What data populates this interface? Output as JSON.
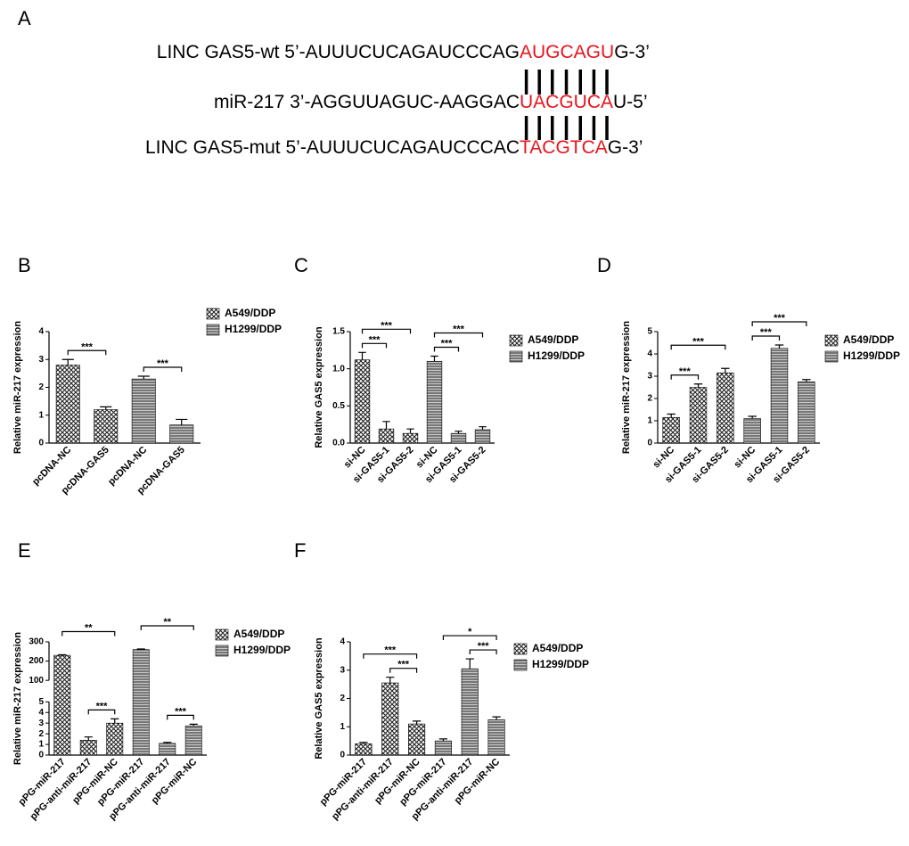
{
  "sequence_panel": {
    "panel": "A",
    "rows": [
      {
        "prefix": "LINC GAS5-wt 5’-AUUUCUCAGAUCCCAG",
        "match": "AUGCAGU",
        "suffix": "G-3’"
      },
      {
        "prefix": "miR-217 3’-AGGUUAGUC-AAGGAC",
        "match": "UACGUCA",
        "suffix": "U-5’"
      },
      {
        "prefix": "LINC GAS5-mut 5’-AUUUCUCAGAUCCCAC",
        "match": "TACGTCA",
        "suffix": "G-3’"
      }
    ]
  },
  "chart_data": [
    {
      "type": "bar",
      "panel": "B",
      "ylabel": "Relative miR-217 expression",
      "categories": [
        "pcDNA-NC",
        "pcDNA-GAS5"
      ],
      "series": [
        {
          "name": "A549/DDP",
          "pattern": "crosshatch",
          "values": [
            2.8,
            1.2
          ],
          "errors": [
            0.2,
            0.1
          ]
        },
        {
          "name": "H1299/DDP",
          "pattern": "hatch",
          "values": [
            2.3,
            0.65
          ],
          "errors": [
            0.1,
            0.2
          ]
        }
      ],
      "ylim": [
        0,
        4
      ],
      "yticks": [
        0,
        1,
        2,
        3,
        4
      ],
      "significance": [
        {
          "series": 0,
          "from": 0,
          "to": 1,
          "label": "***"
        },
        {
          "series": 1,
          "from": 0,
          "to": 1,
          "label": "***"
        }
      ]
    },
    {
      "type": "bar",
      "panel": "C",
      "ylabel": "Relative GAS5 expression",
      "categories": [
        "si-NC",
        "si-GAS5-1",
        "si-GAS5-2"
      ],
      "series": [
        {
          "name": "A549/DDP",
          "pattern": "crosshatch",
          "values": [
            1.12,
            0.19,
            0.13
          ],
          "errors": [
            0.1,
            0.1,
            0.06
          ]
        },
        {
          "name": "H1299/DDP",
          "pattern": "hatch",
          "values": [
            1.1,
            0.13,
            0.18
          ],
          "errors": [
            0.07,
            0.03,
            0.04
          ]
        }
      ],
      "ylim": [
        0,
        1.5
      ],
      "yticks": [
        {
          "value": 0,
          "label": "0.0"
        },
        0.5,
        {
          "value": 1,
          "label": "1.0"
        },
        1.5
      ],
      "significance": [
        {
          "series": 0,
          "from": 0,
          "to": 1,
          "label": "***"
        },
        {
          "series": 0,
          "from": 0,
          "to": 2,
          "label": "***"
        },
        {
          "series": 1,
          "from": 0,
          "to": 1,
          "label": "***"
        },
        {
          "series": 1,
          "from": 0,
          "to": 2,
          "label": "***"
        }
      ]
    },
    {
      "type": "bar",
      "panel": "D",
      "ylabel": "Relative miR-217 expression",
      "categories": [
        "si-NC",
        "si-GAS5-1",
        "si-GAS5-2"
      ],
      "series": [
        {
          "name": "A549/DDP",
          "pattern": "crosshatch",
          "values": [
            1.15,
            2.5,
            3.15
          ],
          "errors": [
            0.15,
            0.15,
            0.2
          ]
        },
        {
          "name": "H1299/DDP",
          "pattern": "hatch",
          "values": [
            1.1,
            4.25,
            2.75
          ],
          "errors": [
            0.1,
            0.15,
            0.1
          ]
        }
      ],
      "ylim": [
        0,
        5
      ],
      "yticks": [
        0,
        1,
        2,
        3,
        4,
        5
      ],
      "significance": [
        {
          "series": 0,
          "from": 0,
          "to": 1,
          "label": "***"
        },
        {
          "series": 0,
          "from": 0,
          "to": 2,
          "label": "***"
        },
        {
          "series": 1,
          "from": 0,
          "to": 1,
          "label": "***"
        },
        {
          "series": 1,
          "from": 0,
          "to": 2,
          "label": "***"
        }
      ]
    },
    {
      "type": "bar",
      "panel": "E",
      "ylabel": "Relative miR-217 expression",
      "categories": [
        "pPG-miR-217",
        "pPG-anti-miR-217",
        "pPG-miR-NC"
      ],
      "series": [
        {
          "name": "A549/DDP",
          "pattern": "crosshatch",
          "values": [
            230,
            1.4,
            3.0
          ],
          "errors": [
            3,
            0.3,
            0.4
          ]
        },
        {
          "name": "H1299/DDP",
          "pattern": "hatch",
          "values": [
            260,
            1.1,
            2.75
          ],
          "errors": [
            3,
            0.1,
            0.15
          ]
        }
      ],
      "ylim": [
        0,
        300
      ],
      "ybreak": [
        5,
        100
      ],
      "yticks": [
        0,
        1,
        2,
        3,
        4,
        5,
        100,
        200,
        300
      ],
      "significance": [
        {
          "series": 0,
          "from": 0,
          "to": 2,
          "label": "**"
        },
        {
          "series": 0,
          "from": 1,
          "to": 2,
          "label": "***"
        },
        {
          "series": 1,
          "from": 0,
          "to": 2,
          "label": "**"
        },
        {
          "series": 1,
          "from": 1,
          "to": 2,
          "label": "***"
        }
      ]
    },
    {
      "type": "bar",
      "panel": "F",
      "ylabel": "Relative GAS5 expression",
      "categories": [
        "pPG-miR-217",
        "pPG-anti-miR-217",
        "pPG-miR-NC"
      ],
      "series": [
        {
          "name": "A549/DDP",
          "pattern": "crosshatch",
          "values": [
            0.4,
            2.55,
            1.1
          ],
          "errors": [
            0.05,
            0.2,
            0.1
          ]
        },
        {
          "name": "H1299/DDP",
          "pattern": "hatch",
          "values": [
            0.5,
            3.05,
            1.25
          ],
          "errors": [
            0.07,
            0.35,
            0.1
          ]
        }
      ],
      "ylim": [
        0,
        4
      ],
      "yticks": [
        0,
        1,
        2,
        3,
        4
      ],
      "significance": [
        {
          "series": 0,
          "from": 0,
          "to": 2,
          "label": "***"
        },
        {
          "series": 0,
          "from": 1,
          "to": 2,
          "label": "***"
        },
        {
          "series": 1,
          "from": 0,
          "to": 2,
          "label": "*"
        },
        {
          "series": 1,
          "from": 1,
          "to": 2,
          "label": "***"
        }
      ]
    }
  ]
}
